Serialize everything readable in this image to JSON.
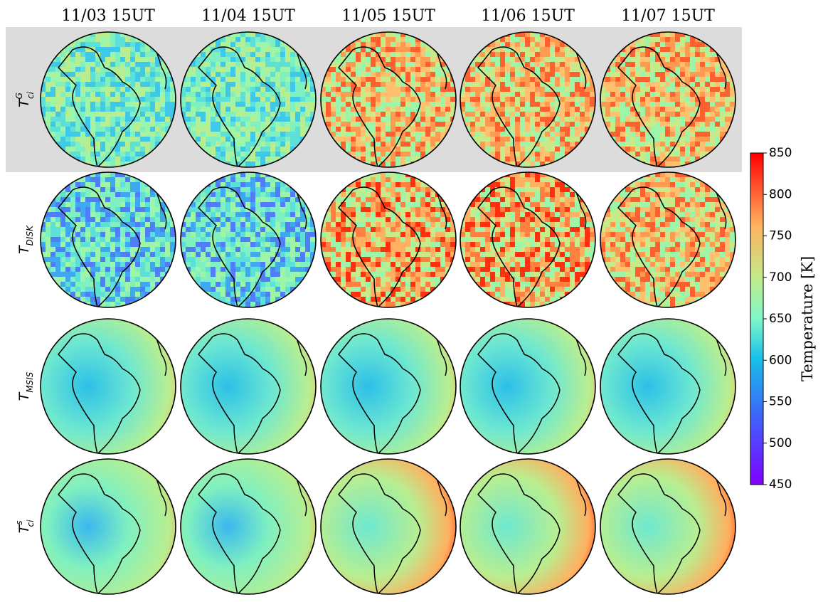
{
  "columns": [
    "11/03 15UT",
    "11/04 15UT",
    "11/05 15UT",
    "11/06 15UT",
    "11/07 15UT"
  ],
  "rows": [
    {
      "symbol": "T",
      "sub": "ci",
      "sup": "G"
    },
    {
      "symbol": "T",
      "sub": "DISK"
    },
    {
      "symbol": "T",
      "sub": "MSIS"
    },
    {
      "symbol": "T",
      "sub": "ci",
      "sup": "s"
    }
  ],
  "colorbar": {
    "label": "Temperature [K]",
    "lim": [
      450,
      850
    ],
    "ticks": [
      450,
      500,
      550,
      600,
      650,
      700,
      750,
      800,
      850
    ]
  }
}
